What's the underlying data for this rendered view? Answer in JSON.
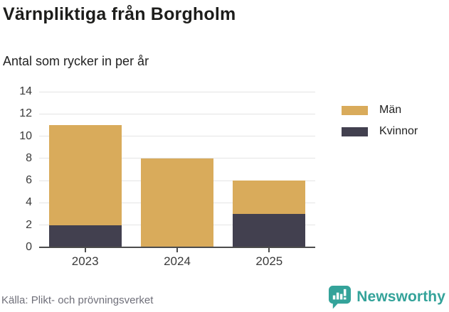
{
  "header": {
    "title": "Värnpliktiga från Borgholm",
    "subtitle": "Antal som rycker in per år"
  },
  "chart_data": {
    "type": "bar",
    "stacked": true,
    "title": "Värnpliktiga från Borgholm",
    "subtitle": "Antal som rycker in per år",
    "categories": [
      "2023",
      "2024",
      "2025"
    ],
    "series": [
      {
        "name": "Män",
        "color": "#D9AB5B",
        "values": [
          9,
          8,
          3
        ]
      },
      {
        "name": "Kvinnor",
        "color": "#42404F",
        "values": [
          2,
          0,
          3
        ]
      }
    ],
    "stack_bottom_to_top": [
      "Kvinnor",
      "Män"
    ],
    "totals": [
      11,
      8,
      6
    ],
    "xlabel": "",
    "ylabel": "",
    "ylim": [
      0,
      14
    ],
    "yticks": [
      0,
      2,
      4,
      6,
      8,
      10,
      12,
      14
    ],
    "grid": true,
    "legend_position": "right-top"
  },
  "footer": {
    "source": "Källa: Plikt- och prövningsverket",
    "brand": "Newsworthy",
    "brand_color": "#34A39A"
  }
}
